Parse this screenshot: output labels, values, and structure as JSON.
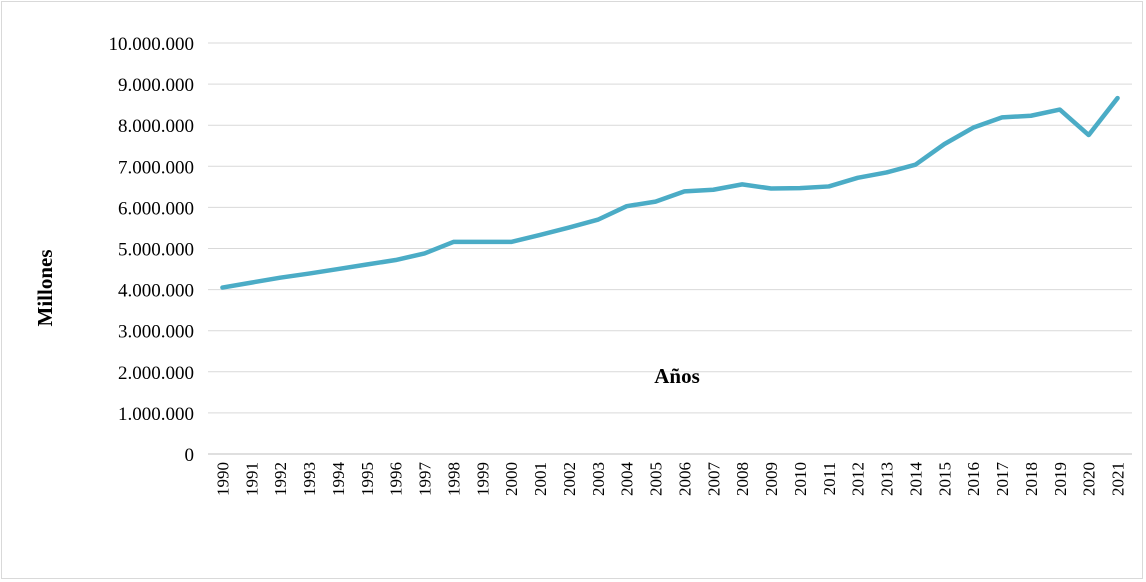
{
  "chart_data": {
    "type": "line",
    "title": "",
    "xlabel": "Años",
    "ylabel": "Millones",
    "ylim": [
      0,
      10000000
    ],
    "y_ticks": [
      {
        "value": 0,
        "label": "0"
      },
      {
        "value": 1000000,
        "label": "1.000.000"
      },
      {
        "value": 2000000,
        "label": "2.000.000"
      },
      {
        "value": 3000000,
        "label": "3.000.000"
      },
      {
        "value": 4000000,
        "label": "4.000.000"
      },
      {
        "value": 5000000,
        "label": "5.000.000"
      },
      {
        "value": 6000000,
        "label": "6.000.000"
      },
      {
        "value": 7000000,
        "label": "7.000.000"
      },
      {
        "value": 8000000,
        "label": "8.000.000"
      },
      {
        "value": 9000000,
        "label": "9.000.000"
      },
      {
        "value": 10000000,
        "label": "10.000.000"
      }
    ],
    "categories": [
      "1990",
      "1991",
      "1992",
      "1993",
      "1994",
      "1995",
      "1996",
      "1997",
      "1998",
      "1999",
      "2000",
      "2001",
      "2002",
      "2003",
      "2004",
      "2005",
      "2006",
      "2007",
      "2008",
      "2009",
      "2010",
      "2011",
      "2012",
      "2013",
      "2014",
      "2015",
      "2016",
      "2017",
      "2018",
      "2019",
      "2020",
      "2021"
    ],
    "grid": true,
    "legend": "none",
    "series": [
      {
        "color": "#4bacc6",
        "values": [
          4050000,
          4170000,
          4290000,
          4390000,
          4500000,
          4610000,
          4720000,
          4880000,
          5160000,
          5160000,
          5160000,
          5330000,
          5510000,
          5700000,
          6030000,
          6140000,
          6390000,
          6430000,
          6560000,
          6460000,
          6470000,
          6510000,
          6720000,
          6850000,
          7040000,
          7540000,
          7940000,
          8190000,
          8230000,
          8380000,
          7760000,
          8660000
        ]
      }
    ]
  }
}
